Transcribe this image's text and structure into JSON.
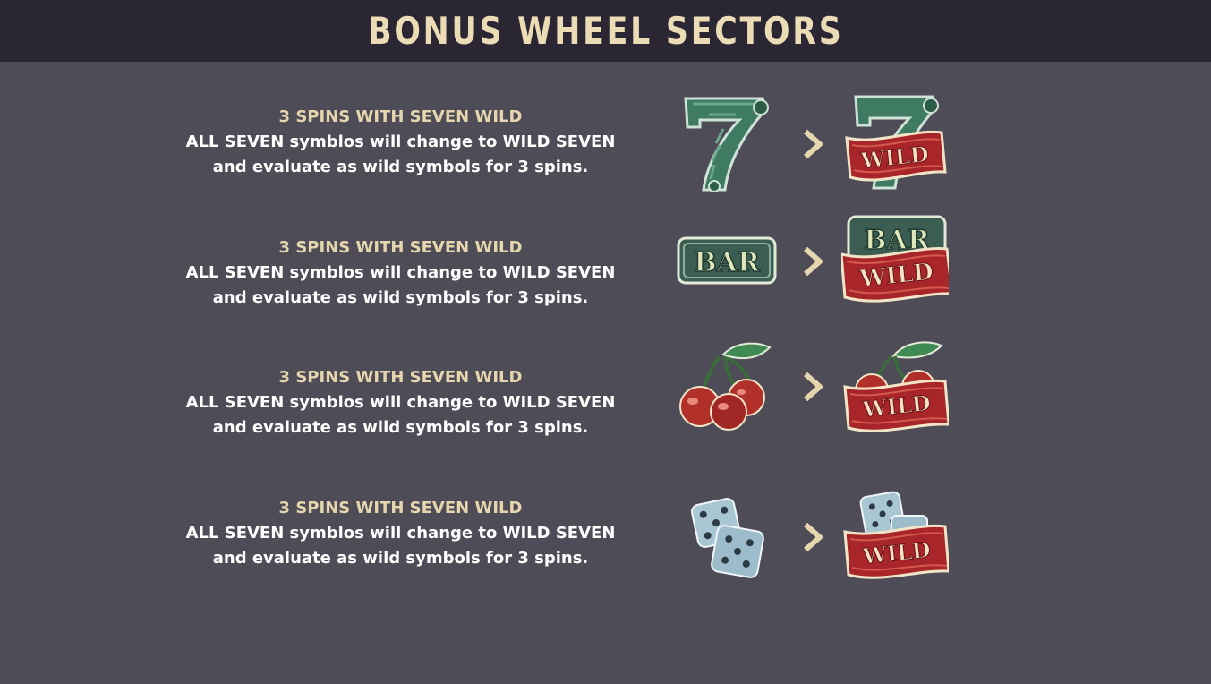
{
  "header": {
    "title": "BONUS WHEEL SECTORS"
  },
  "sectors": [
    {
      "title": "3 SPINS WITH SEVEN WILD",
      "line1": "ALL SEVEN symblos will change to WILD SEVEN",
      "line2": "and evaluate as wild symbols for 3 spins.",
      "symbol_icon": "seven-icon"
    },
    {
      "title": "3 SPINS WITH SEVEN WILD",
      "line1": "ALL SEVEN symblos will change to WILD SEVEN",
      "line2": "and evaluate as wild symbols for 3 spins.",
      "symbol_icon": "bar-icon"
    },
    {
      "title": "3 SPINS WITH SEVEN WILD",
      "line1": "ALL SEVEN symblos will change to WILD SEVEN",
      "line2": "and evaluate as wild symbols for 3 spins.",
      "symbol_icon": "cherry-icon"
    },
    {
      "title": "3 SPINS WITH SEVEN WILD",
      "line1": "ALL SEVEN symblos will change to WILD SEVEN",
      "line2": "and evaluate as wild symbols for 3 spins.",
      "symbol_icon": "dice-icon"
    }
  ],
  "wild_label": "WILD",
  "bar_label": "BAR",
  "colors": {
    "background": "#4e4c57",
    "header_bg": "#2a2633",
    "title_cream": "#ecdcb6",
    "ribbon_red": "#a8262a",
    "seven_green": "#3f7a63",
    "cherry_red": "#b2302a",
    "dice_blue": "#a9c6d3"
  }
}
